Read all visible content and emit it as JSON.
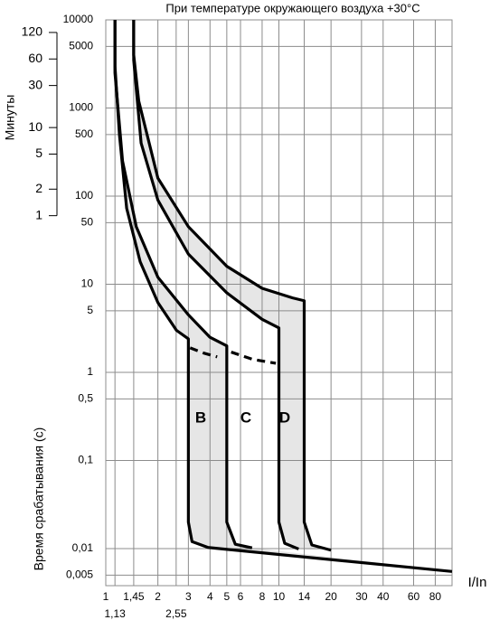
{
  "chart_data": {
    "type": "line",
    "title": "При температуре окружающего воздуха +30°C",
    "x_label": "I/In",
    "y_label": "Время срабатывания (с)",
    "y2_label": "Минуты",
    "log_x": true,
    "log_y": true,
    "grid": true,
    "xlim": [
      1,
      100
    ],
    "xticks": [
      1,
      {
        "value": 1.13,
        "label": "1,13"
      },
      {
        "value": 1.45,
        "label": "1,45"
      },
      2,
      {
        "value": 2.55,
        "label": "2,55"
      },
      3,
      4,
      5,
      6,
      8,
      10,
      14,
      20,
      30,
      40,
      60,
      80
    ],
    "ylim": [
      0.0038,
      10000
    ],
    "yticks": [
      10000,
      5000,
      1000,
      500,
      100,
      50,
      10,
      5,
      1,
      {
        "value": 0.5,
        "label": "0,5"
      },
      {
        "value": 0.1,
        "label": "0,1"
      },
      {
        "value": 0.01,
        "label": "0,01"
      },
      {
        "value": 0.005,
        "label": "0,005"
      }
    ],
    "y2lim": [
      6.33e-05,
      166.7
    ],
    "y2ticks": [
      120,
      60,
      30,
      10,
      5,
      2,
      1
    ],
    "annotations": [
      "B",
      "C",
      "D"
    ],
    "band_color": "#e6e6e6",
    "series": [
      {
        "color": "#000000",
        "style": "solid",
        "x": [
          1.13,
          1.13,
          1.2,
          1.32,
          1.58,
          2.0,
          2.56,
          3,
          3,
          3.15,
          3.9,
          100
        ],
        "values": [
          10000,
          3000,
          490,
          73,
          18,
          6.2,
          3.0,
          2.4,
          0.02,
          0.012,
          0.0103,
          0.0055
        ]
      },
      {
        "color": "#000000",
        "style": "solid",
        "x": [
          1.13,
          1.13,
          1.25,
          1.5,
          2,
          3,
          4,
          5,
          5,
          5.6,
          7
        ],
        "values": [
          10000,
          2500,
          250,
          45,
          12,
          4.5,
          2.5,
          2.0,
          0.02,
          0.0112,
          0.0102
        ]
      },
      {
        "color": "#000000",
        "style": "solid",
        "x": [
          1.45,
          1.45,
          1.6,
          2,
          3,
          5,
          8,
          10,
          10,
          10.8,
          13
        ],
        "values": [
          10000,
          3500,
          400,
          90,
          22,
          8,
          4.0,
          3.2,
          0.02,
          0.0115,
          0.0099
        ]
      },
      {
        "color": "#000000",
        "style": "solid",
        "x": [
          1.45,
          1.45,
          1.55,
          2,
          3,
          5,
          8,
          12,
          14,
          14,
          15.5,
          20
        ],
        "values": [
          10000,
          4000,
          1200,
          160,
          45,
          16,
          9,
          7,
          6.5,
          0.02,
          0.011,
          0.0096
        ]
      },
      {
        "color": "#000000",
        "style": "dashed",
        "x": [
          3.07,
          3.7,
          4.4
        ],
        "values": [
          1.9,
          1.65,
          1.5
        ]
      },
      {
        "color": "#000000",
        "style": "dashed",
        "x": [
          5.3,
          7.1,
          9.6
        ],
        "values": [
          1.7,
          1.4,
          1.27
        ]
      }
    ]
  }
}
